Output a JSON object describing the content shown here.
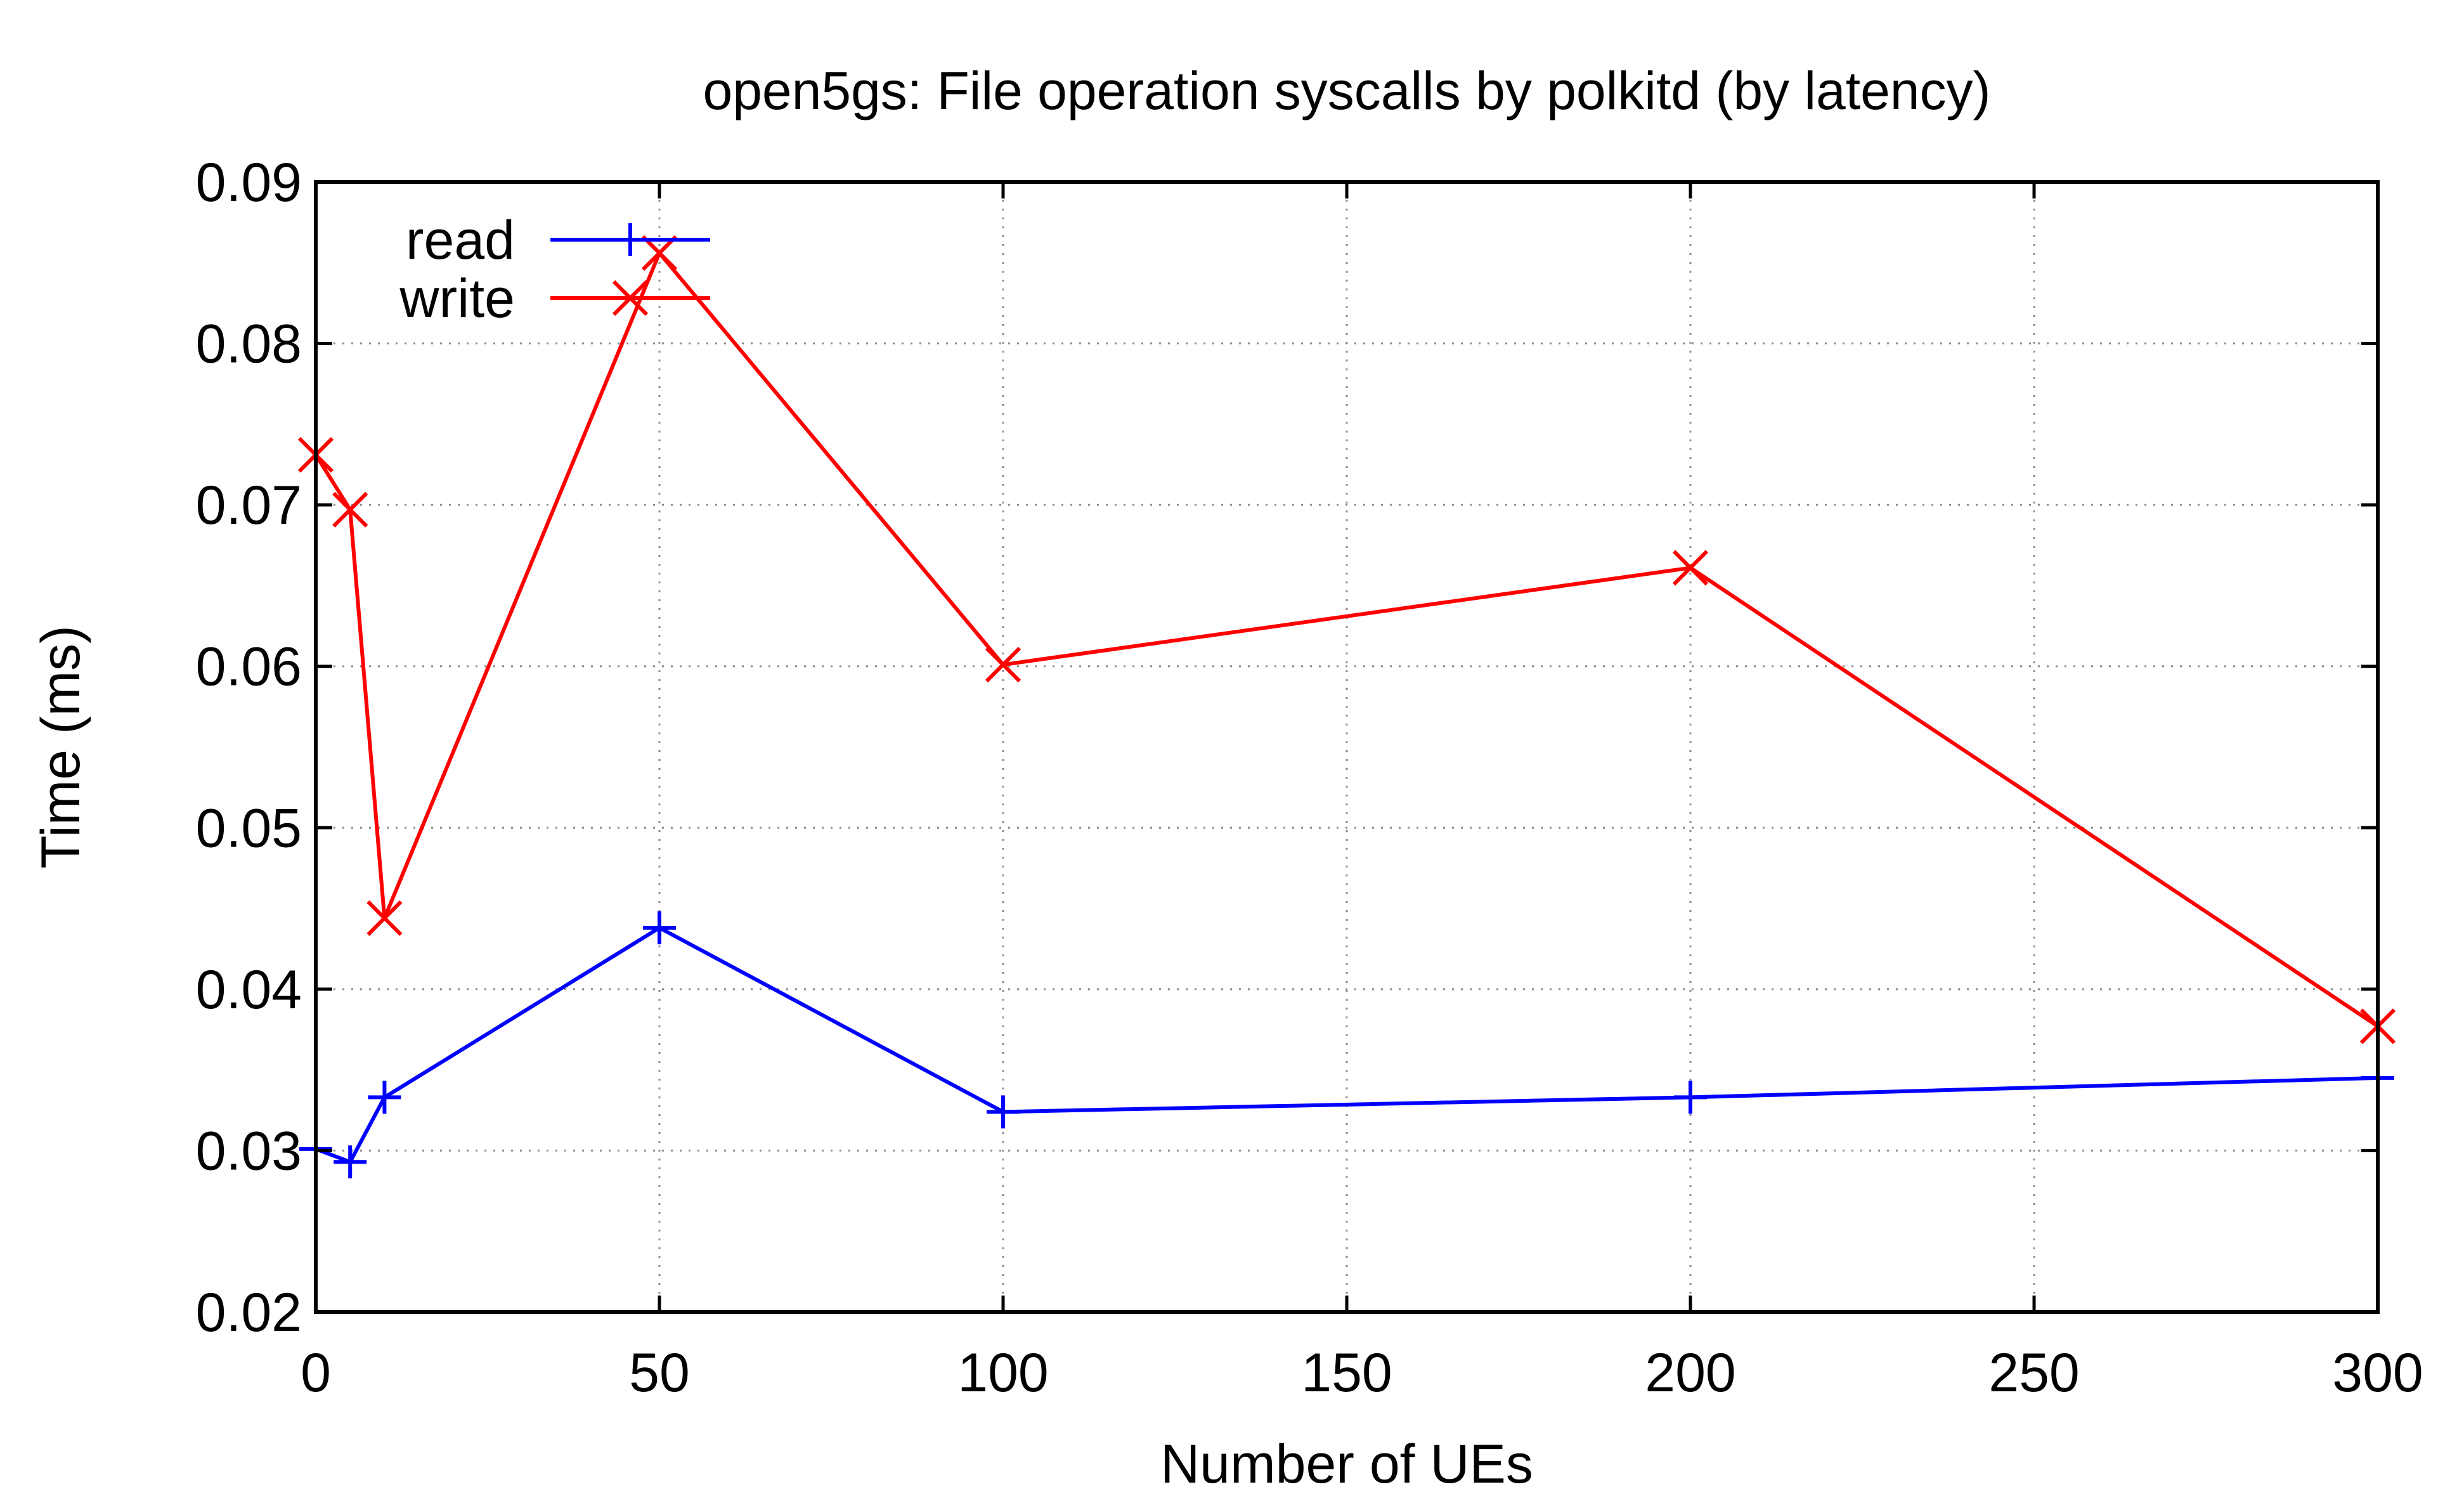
{
  "chart_data": {
    "type": "line",
    "title": "open5gs: File operation syscalls by polkitd (by latency)",
    "xlabel": "Number of UEs",
    "ylabel": "Time (ms)",
    "xlim": [
      0,
      300
    ],
    "ylim": [
      0.02,
      0.09
    ],
    "x_ticks": [
      0,
      50,
      100,
      150,
      200,
      250,
      300
    ],
    "y_ticks": [
      0.02,
      0.03,
      0.04,
      0.05,
      0.06,
      0.07,
      0.08,
      0.09
    ],
    "x_tick_labels": [
      "0",
      "50",
      "100",
      "150",
      "200",
      "250",
      "300"
    ],
    "y_tick_labels": [
      "0.02",
      "0.03",
      "0.04",
      "0.05",
      "0.06",
      "0.07",
      "0.08",
      "0.09"
    ],
    "grid": true,
    "legend_position": "top-left",
    "series": [
      {
        "name": "read",
        "color": "#0000ff",
        "marker": "plus",
        "x": [
          0,
          5,
          10,
          50,
          100,
          200,
          300
        ],
        "y": [
          0.0301,
          0.0293,
          0.0333,
          0.0438,
          0.0324,
          0.0333,
          0.0345
        ]
      },
      {
        "name": "write",
        "color": "#ff0000",
        "marker": "cross",
        "x": [
          0,
          5,
          10,
          50,
          100,
          200,
          300
        ],
        "y": [
          0.0731,
          0.0697,
          0.0444,
          0.0856,
          0.0601,
          0.0661,
          0.0377
        ]
      }
    ]
  }
}
